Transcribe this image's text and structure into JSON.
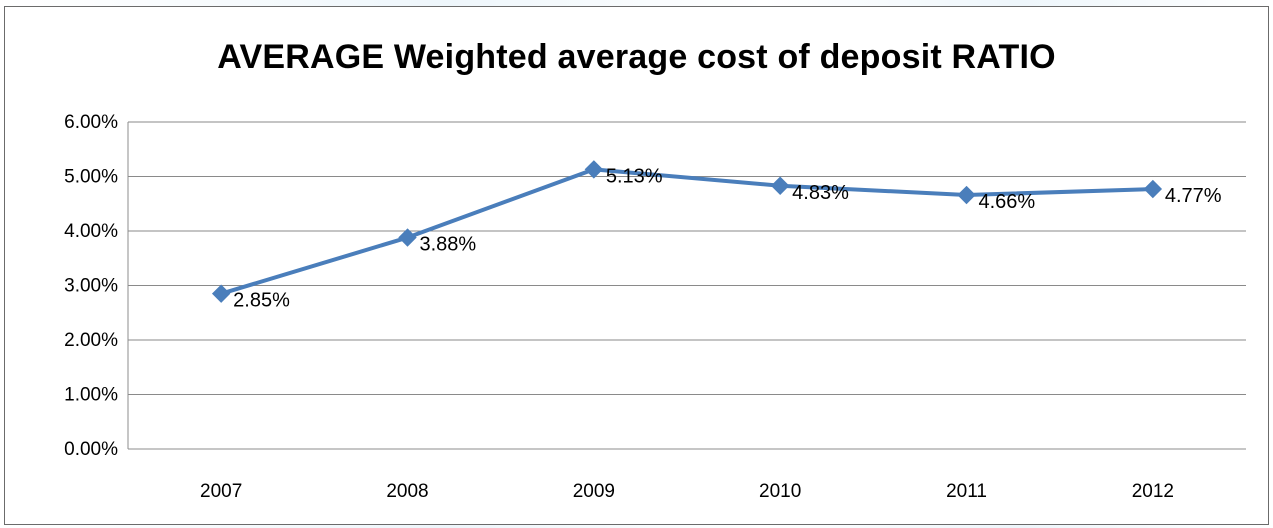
{
  "chart_data": {
    "type": "line",
    "title": "AVERAGE Weighted average cost of deposit RATIO",
    "categories": [
      "2007",
      "2008",
      "2009",
      "2010",
      "2011",
      "2012"
    ],
    "series": [
      {
        "values": [
          2.85,
          3.88,
          5.13,
          4.83,
          4.66,
          4.77
        ],
        "labels": [
          "2.85%",
          "3.88%",
          "5.13%",
          "4.83%",
          "4.66%",
          "4.77%"
        ],
        "color": "#4a7ebb",
        "marker": "diamond"
      }
    ],
    "yticks": [
      "0.00%",
      "1.00%",
      "2.00%",
      "3.00%",
      "4.00%",
      "5.00%",
      "6.00%"
    ],
    "ylim": [
      0,
      6
    ],
    "xlabel": "",
    "ylabel": "",
    "grid": true,
    "legend": "none"
  }
}
